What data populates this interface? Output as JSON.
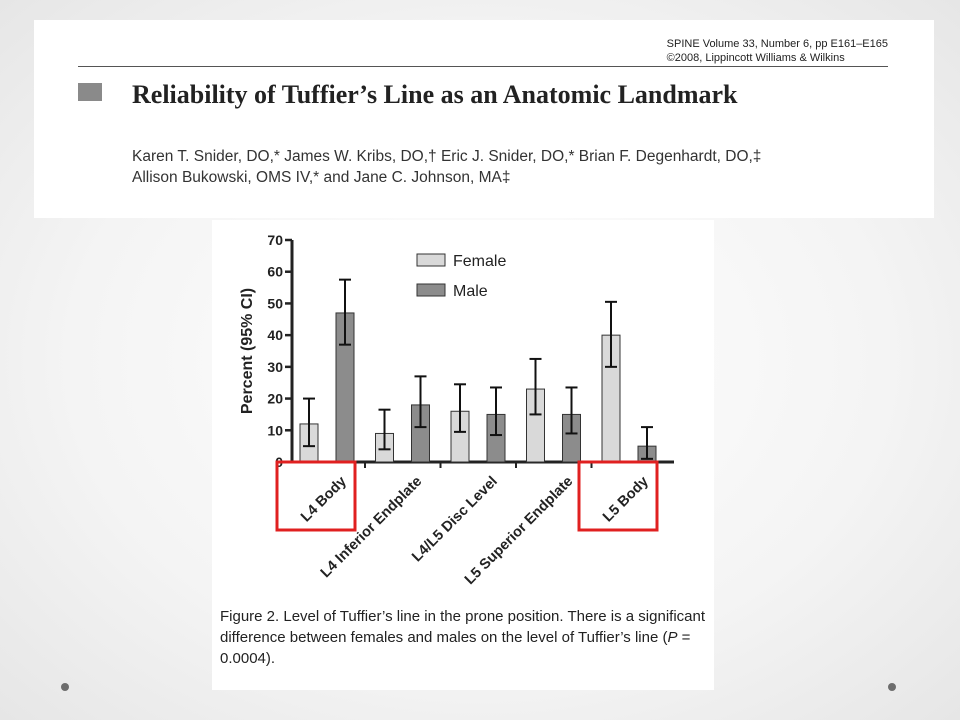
{
  "header": {
    "journal_line1": "SPINE Volume 33, Number 6, pp E161–E165",
    "journal_line2": "©2008, Lippincott Williams & Wilkins",
    "title": "Reliability of Tuffier’s Line as an Anatomic Landmark",
    "authors_line1": "Karen T. Snider, DO,* James W. Kribs, DO,† Eric J. Snider, DO,* Brian F. Degenhardt, DO,‡",
    "authors_line2": "Allison Bukowski, OMS IV,* and Jane C. Johnson, MA‡"
  },
  "chart_data": {
    "type": "bar",
    "title": "",
    "xlabel": "",
    "ylabel": "Percent (95% CI)",
    "ylim": [
      0,
      70
    ],
    "yticks": [
      0,
      10,
      20,
      30,
      40,
      50,
      60,
      70
    ],
    "categories": [
      "L4 Body",
      "L4 Inferior Endplate",
      "L4/L5 Disc Level",
      "L5 Superior Endplate",
      "L5 Body"
    ],
    "series": [
      {
        "name": "Female",
        "color": "#d9d9d9",
        "values": [
          12,
          9,
          16,
          23,
          40
        ],
        "ci_low": [
          5,
          4,
          9.5,
          15,
          30
        ],
        "ci_high": [
          20,
          16.5,
          24.5,
          32.5,
          50.5
        ]
      },
      {
        "name": "Male",
        "color": "#8c8c8c",
        "values": [
          47,
          18,
          15,
          15,
          5
        ],
        "ci_low": [
          37,
          11,
          8.5,
          9,
          1
        ],
        "ci_high": [
          57.5,
          27,
          23.5,
          23.5,
          11
        ]
      }
    ],
    "legend_position": "top-right",
    "highlighted_categories": [
      "L4 Body",
      "L5 Body"
    ],
    "highlight_color": "#e02020"
  },
  "caption": {
    "prefix": "Figure 2. Level of Tuffier’s line in the prone position. There is a significant difference between females and males on the level of Tuffier’s line (",
    "p_symbol": "P",
    "suffix": " = 0.0004)."
  }
}
